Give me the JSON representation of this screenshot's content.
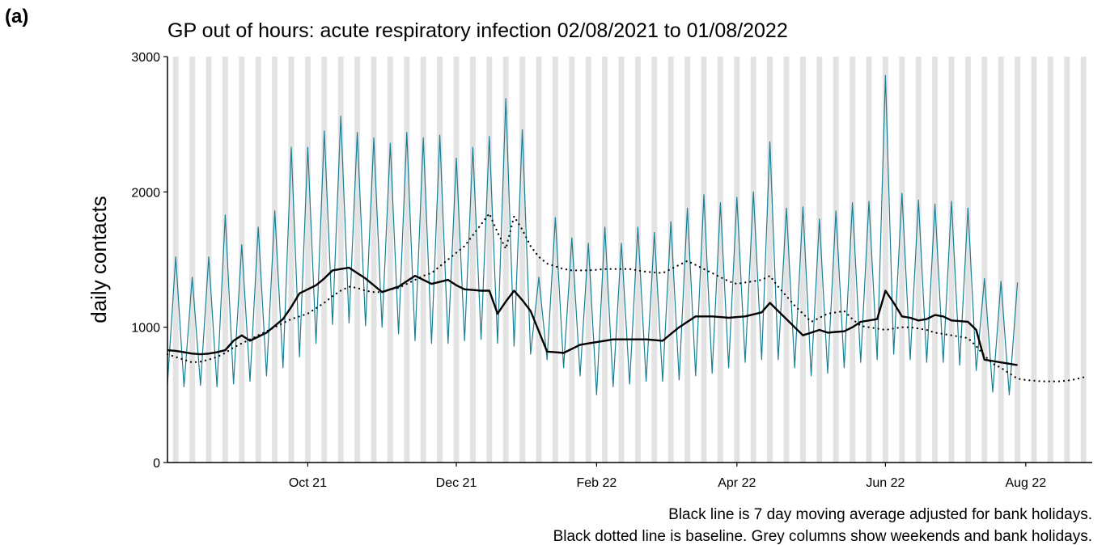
{
  "panel_label": "(a)",
  "chart_data": {
    "type": "line",
    "title": "GP out of hours: acute respiratory infection 02/08/2021 to 01/08/2022",
    "y_label": "daily contacts",
    "notes": [
      "Black line is 7 day moving average adjusted for bank holidays.",
      "Black dotted line is baseline. Grey columns show weekends and bank holidays."
    ],
    "categories": [
      null,
      null,
      null,
      null,
      null,
      null,
      null,
      null,
      null,
      null,
      null,
      null,
      null,
      null,
      null,
      null,
      null,
      "Oct 21",
      null,
      null,
      null,
      null,
      null,
      null,
      null,
      null,
      null,
      null,
      null,
      null,
      null,
      null,
      null,
      null,
      null,
      "Dec 21",
      null,
      null,
      null,
      null,
      null,
      null,
      null,
      null,
      null,
      null,
      null,
      null,
      null,
      null,
      null,
      null,
      "Feb 22",
      null,
      null,
      null,
      null,
      null,
      null,
      null,
      null,
      null,
      null,
      null,
      null,
      null,
      null,
      null,
      null,
      "Apr 22",
      null,
      null,
      null,
      null,
      null,
      null,
      null,
      null,
      null,
      null,
      null,
      null,
      null,
      null,
      null,
      null,
      null,
      "Jun 22",
      null,
      null,
      null,
      null,
      null,
      null,
      null,
      null,
      null,
      null,
      null,
      null,
      null,
      null,
      null,
      null,
      "Aug 22",
      null,
      null,
      null,
      null,
      null,
      null,
      null
    ],
    "series": [
      {
        "color": "#1b7f94",
        "style": "solid",
        "width": 1.2,
        "values": [
          580,
          1520,
          560,
          1370,
          570,
          1520,
          560,
          1830,
          580,
          1610,
          600,
          1740,
          640,
          1860,
          700,
          2330,
          780,
          2330,
          880,
          2450,
          1020,
          2560,
          1030,
          2440,
          1010,
          2400,
          1000,
          2360,
          950,
          2440,
          900,
          2400,
          880,
          2420,
          880,
          2250,
          900,
          2330,
          910,
          2410,
          880,
          2690,
          860,
          2460,
          800,
          1370,
          760,
          1810,
          700,
          1660,
          640,
          1620,
          500,
          1740,
          560,
          1620,
          580,
          1740,
          600,
          1700,
          600,
          1780,
          610,
          1880,
          640,
          1980,
          660,
          1920,
          700,
          1960,
          740,
          2000,
          760,
          2370,
          760,
          1880,
          700,
          1890,
          640,
          1800,
          660,
          1860,
          700,
          1920,
          740,
          1930,
          760,
          2860,
          800,
          1990,
          760,
          1940,
          740,
          1910,
          740,
          1930,
          720,
          1880,
          680,
          1360,
          520,
          1340,
          500,
          1330,
          null,
          null,
          null,
          null,
          null,
          null,
          null,
          null
        ]
      },
      {
        "color": "#000000",
        "style": "solid",
        "width": 2.4,
        "values": [
          830,
          825,
          815,
          805,
          800,
          805,
          815,
          830,
          900,
          940,
          900,
          930,
          960,
          1010,
          1060,
          1150,
          1250,
          1280,
          1310,
          1360,
          1420,
          1430,
          1440,
          1400,
          1360,
          1310,
          1260,
          1280,
          1300,
          1340,
          1380,
          1350,
          1320,
          1335,
          1350,
          1310,
          1280,
          1275,
          1270,
          1270,
          1100,
          1190,
          1270,
          1200,
          1120,
          970,
          820,
          815,
          810,
          840,
          870,
          880,
          890,
          900,
          910,
          910,
          910,
          910,
          910,
          905,
          900,
          950,
          1000,
          1040,
          1080,
          1080,
          1080,
          1075,
          1070,
          1075,
          1080,
          1095,
          1110,
          1180,
          1120,
          1060,
          1000,
          940,
          960,
          980,
          960,
          965,
          970,
          1000,
          1040,
          1050,
          1060,
          1270,
          1180,
          1080,
          1070,
          1050,
          1060,
          1090,
          1080,
          1050,
          1045,
          1040,
          980,
          760,
          750,
          740,
          730,
          720,
          null,
          null,
          null,
          null,
          null,
          null,
          null,
          null
        ]
      },
      {
        "color": "#000000",
        "style": "dotted",
        "width": 2.2,
        "values": [
          800,
          780,
          760,
          740,
          745,
          760,
          780,
          810,
          850,
          880,
          910,
          940,
          970,
          1000,
          1030,
          1060,
          1080,
          1100,
          1140,
          1180,
          1230,
          1270,
          1300,
          1290,
          1270,
          1260,
          1260,
          1280,
          1290,
          1320,
          1350,
          1380,
          1400,
          1450,
          1500,
          1550,
          1600,
          1680,
          1760,
          1840,
          1700,
          1580,
          1820,
          1720,
          1600,
          1520,
          1470,
          1450,
          1430,
          1420,
          1420,
          1420,
          1425,
          1430,
          1430,
          1430,
          1430,
          1420,
          1410,
          1405,
          1400,
          1430,
          1460,
          1490,
          1460,
          1430,
          1400,
          1370,
          1340,
          1320,
          1330,
          1340,
          1350,
          1380,
          1300,
          1230,
          1160,
          1100,
          1040,
          1070,
          1100,
          1110,
          1120,
          1060,
          1010,
          1000,
          990,
          980,
          990,
          1000,
          1000,
          990,
          980,
          960,
          950,
          940,
          930,
          920,
          860,
          790,
          730,
          700,
          660,
          620,
          610,
          605,
          600,
          600,
          600,
          605,
          615,
          630
        ]
      }
    ],
    "ylim": [
      0,
      3000
    ],
    "yticks": [
      0,
      1000,
      2000,
      3000
    ],
    "weekend_columns": true,
    "column_color": "#e3e3e3"
  }
}
